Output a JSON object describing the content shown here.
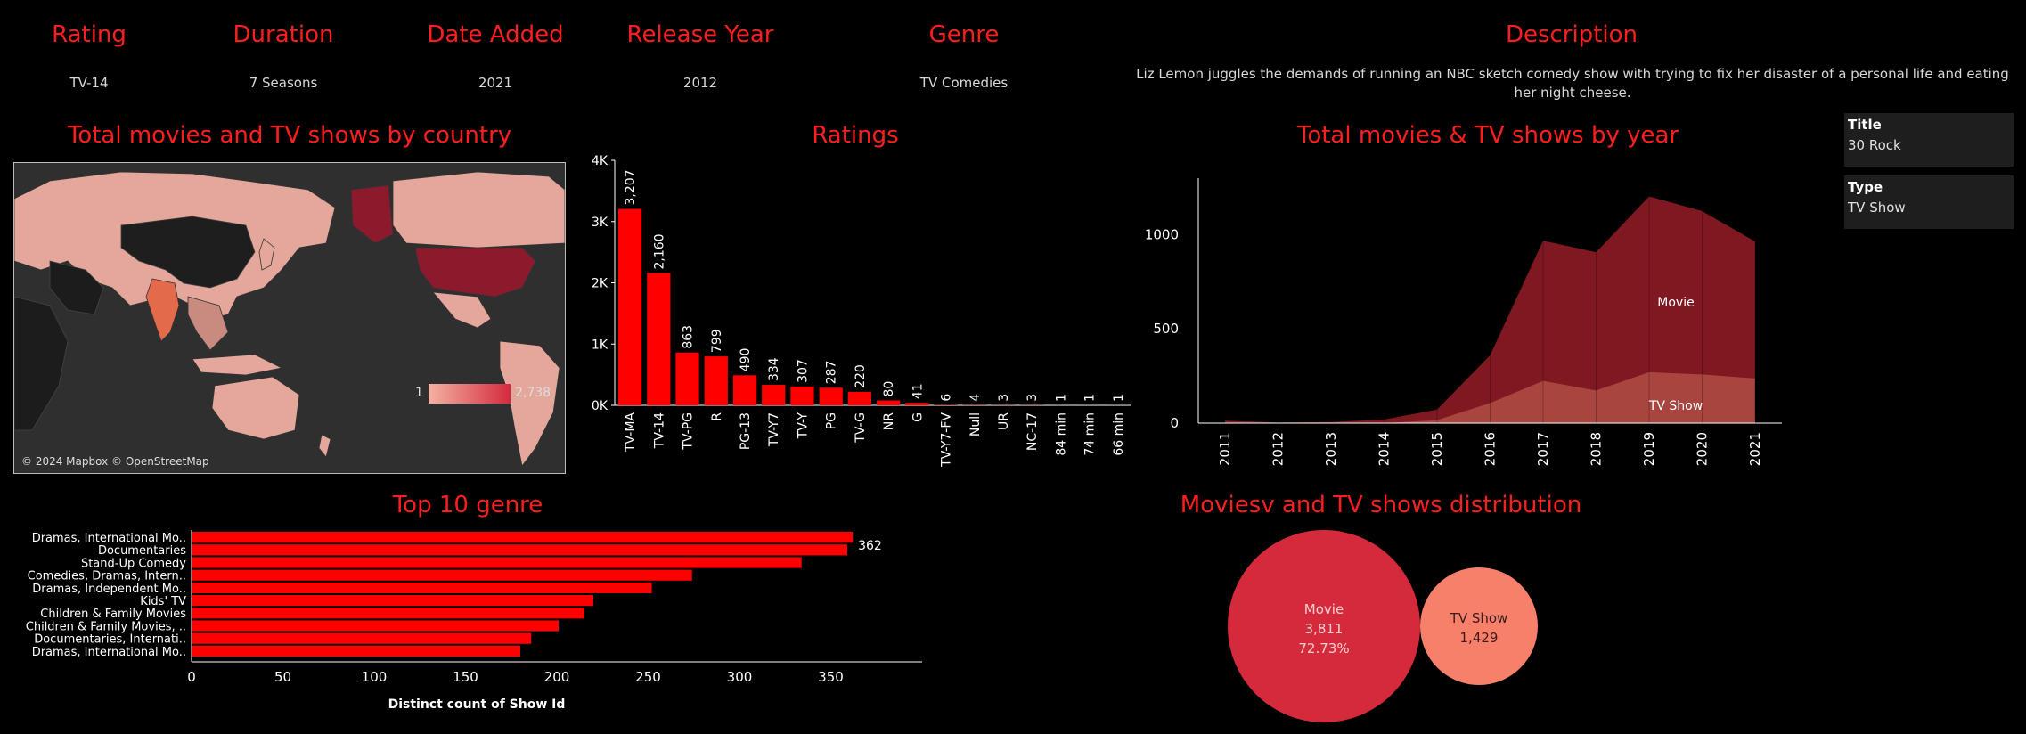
{
  "header": {
    "rating": {
      "label": "Rating",
      "value": "TV-14"
    },
    "duration": {
      "label": "Duration",
      "value": "7 Seasons"
    },
    "date_added": {
      "label": "Date Added",
      "value": "2021"
    },
    "release_year": {
      "label": "Release Year",
      "value": "2012"
    },
    "genre": {
      "label": "Genre",
      "value": "TV Comedies"
    },
    "description": {
      "label": "Description",
      "value": "Liz Lemon juggles the demands of running an NBC sketch comedy show with trying to fix her disaster of a personal life and eating her night cheese."
    }
  },
  "cards": {
    "title": {
      "label": "Title",
      "value": "30 Rock"
    },
    "type": {
      "label": "Type",
      "value": "TV Show"
    }
  },
  "map": {
    "title": "Total movies and TV shows by country",
    "legend_min": "1",
    "legend_max": "2,738",
    "attribution": "© 2024 Mapbox © OpenStreetMap"
  },
  "chart_data": [
    {
      "type": "bar",
      "title": "Ratings",
      "categories": [
        "TV-MA",
        "TV-14",
        "TV-PG",
        "R",
        "PG-13",
        "TV-Y7",
        "TV-Y",
        "PG",
        "TV-G",
        "NR",
        "G",
        "TV-Y7-FV",
        "Null",
        "UR",
        "NC-17",
        "84 min",
        "74 min",
        "66 min"
      ],
      "values": [
        3207,
        2160,
        863,
        799,
        490,
        334,
        307,
        287,
        220,
        80,
        41,
        6,
        4,
        3,
        3,
        1,
        1,
        1
      ],
      "value_labels": [
        "3,207",
        "2,160",
        "863",
        "799",
        "490",
        "334",
        "307",
        "287",
        "220",
        "80",
        "41",
        "6",
        "4",
        "3",
        "3",
        "1",
        "1",
        "1"
      ],
      "yticks": [
        "0K",
        "1K",
        "2K",
        "3K",
        "4K"
      ],
      "ylim": [
        0,
        4000
      ],
      "color": "#ff0000"
    },
    {
      "type": "area",
      "title": "Total movies & TV shows by year",
      "x": [
        "2011",
        "2012",
        "2013",
        "2014",
        "2015",
        "2016",
        "2017",
        "2018",
        "2019",
        "2020",
        "2021"
      ],
      "yticks": [
        "0",
        "500",
        "1000"
      ],
      "ylim": [
        0,
        1300
      ],
      "series": [
        {
          "name": "Movie",
          "values": [
            13,
            3,
            6,
            19,
            56,
            253,
            744,
            734,
            933,
            867,
            727
          ],
          "color": "#7f1820"
        },
        {
          "name": "TV Show",
          "values": [
            0,
            0,
            0,
            0,
            16,
            107,
            224,
            173,
            270,
            258,
            237
          ],
          "color": "#a8453f"
        }
      ]
    },
    {
      "type": "bar",
      "orientation": "horizontal",
      "title": "Top 10 genre",
      "categories": [
        "Dramas, International Mo..",
        "Documentaries",
        "Stand-Up Comedy",
        "Comedies, Dramas, Intern..",
        "Dramas, Independent Mo..",
        "Kids' TV",
        "Children & Family Movies",
        "Children & Family Movies, ..",
        "Documentaries, Internati..",
        "Dramas, International Mo.."
      ],
      "values": [
        362,
        359,
        334,
        274,
        252,
        220,
        215,
        201,
        186,
        180
      ],
      "top_label": "362",
      "xticks": [
        "0",
        "50",
        "100",
        "150",
        "200",
        "250",
        "300",
        "350"
      ],
      "xlim": [
        0,
        400
      ],
      "xlabel": "Distinct count of Show Id",
      "color": "#ff0000"
    },
    {
      "type": "bubble",
      "title": "Moviesv and TV shows distribution",
      "items": [
        {
          "name": "Movie",
          "value": "3,811",
          "percent": "72.73%",
          "color": "#d42a3c"
        },
        {
          "name": "TV Show",
          "value": "1,429",
          "color": "#f6806a"
        }
      ]
    }
  ]
}
